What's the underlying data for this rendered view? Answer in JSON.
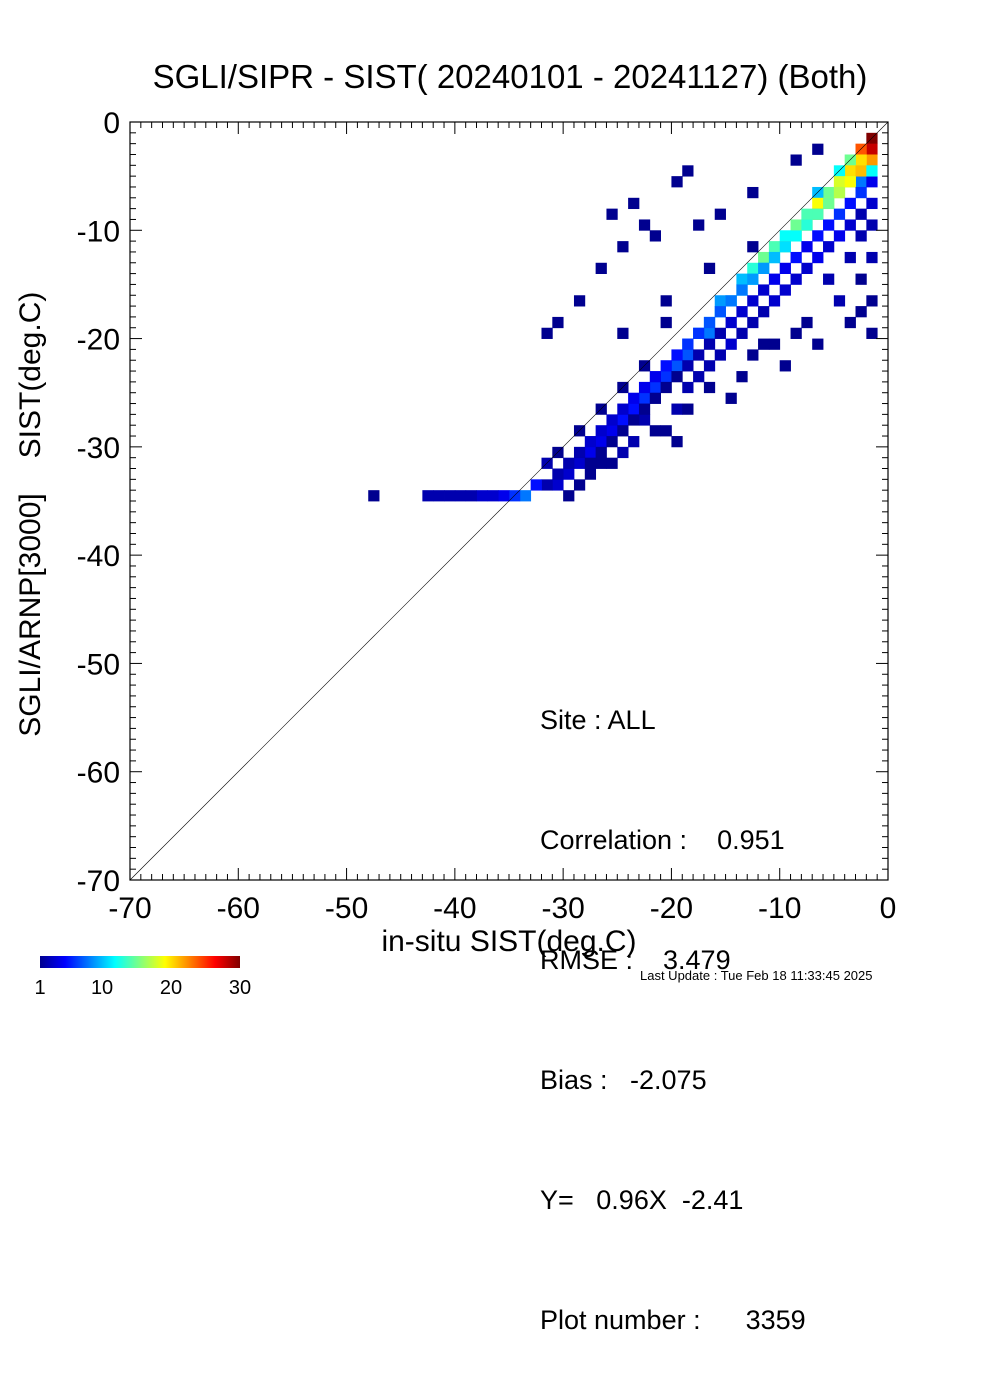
{
  "chart_data": {
    "type": "heatmap",
    "title": "SGLI/SIPR - SIST( 20240101 - 20241127) (Both)",
    "xlabel": "in-situ SIST(deg.C)",
    "ylabel_upper": "SIST(deg.C)",
    "ylabel_lower": "SGLI/ARNP[3000]",
    "xlim": [
      -70,
      0
    ],
    "ylim": [
      -70,
      0
    ],
    "x_ticks": [
      "-70",
      "-60",
      "-50",
      "-40",
      "-30",
      "-20",
      "-10",
      "0"
    ],
    "y_ticks": [
      "-70",
      "-60",
      "-50",
      "-40",
      "-30",
      "-20",
      "-10",
      "0"
    ],
    "identity_line": true,
    "colorbar": {
      "range": [
        1,
        30
      ],
      "tick_labels": [
        "1",
        "10",
        "20",
        "30"
      ],
      "colors": [
        "#00008f",
        "#0000ff",
        "#0080ff",
        "#00ffff",
        "#80ff80",
        "#ffff00",
        "#ff8000",
        "#ff0000",
        "#800000"
      ]
    },
    "cells": [
      [
        -1,
        -1,
        30
      ],
      [
        -1,
        -2,
        28
      ],
      [
        -2,
        -2,
        24
      ],
      [
        -1,
        -3,
        22
      ],
      [
        -2,
        -3,
        20
      ],
      [
        -3,
        -3,
        15
      ],
      [
        -2,
        -4,
        18
      ],
      [
        -3,
        -4,
        20
      ],
      [
        -4,
        -4,
        12
      ],
      [
        -2,
        -5,
        8
      ],
      [
        -3,
        -5,
        14
      ],
      [
        -4,
        -5,
        18
      ],
      [
        -4,
        -6,
        16
      ],
      [
        -5,
        -6,
        15
      ],
      [
        -6,
        -6,
        10
      ],
      [
        -5,
        -7,
        17
      ],
      [
        -6,
        -7,
        19
      ],
      [
        -6,
        -8,
        22
      ],
      [
        -7,
        -8,
        14
      ],
      [
        -7,
        -9,
        20
      ],
      [
        -8,
        -9,
        15
      ],
      [
        -8,
        -10,
        18
      ],
      [
        -9,
        -10,
        12
      ],
      [
        -9,
        -11,
        16
      ],
      [
        -10,
        -11,
        14
      ],
      [
        -10,
        -12,
        12
      ],
      [
        -11,
        -12,
        15
      ],
      [
        -11,
        -13,
        11
      ],
      [
        -12,
        -13,
        13
      ],
      [
        -12,
        -14,
        12
      ],
      [
        -13,
        -14,
        10
      ],
      [
        -13,
        -15,
        11
      ],
      [
        -14,
        -16,
        10
      ],
      [
        -15,
        -16,
        9
      ],
      [
        -15,
        -17,
        11
      ],
      [
        -16,
        -18,
        9
      ],
      [
        -16,
        -19,
        8
      ],
      [
        -17,
        -19,
        9
      ],
      [
        -18,
        -20,
        8
      ],
      [
        -18,
        -21,
        7
      ],
      [
        -19,
        -22,
        7
      ],
      [
        -20,
        -23,
        6
      ],
      [
        -21,
        -24,
        6
      ],
      [
        -22,
        -25,
        6
      ],
      [
        -23,
        -26,
        5
      ],
      [
        -24,
        -27,
        5
      ],
      [
        -25,
        -28,
        4
      ],
      [
        -26,
        -29,
        4
      ],
      [
        -27,
        -30,
        4
      ],
      [
        -28,
        -31,
        3
      ],
      [
        -29,
        -32,
        3
      ],
      [
        -30,
        -33,
        3
      ],
      [
        -31,
        -33,
        2
      ],
      [
        -32,
        -33,
        5
      ],
      [
        -33,
        -34,
        8
      ],
      [
        -34,
        -34,
        6
      ],
      [
        -35,
        -34,
        4
      ],
      [
        -36,
        -34,
        3
      ],
      [
        -37,
        -34,
        3
      ],
      [
        -38,
        -34,
        2
      ],
      [
        -39,
        -34,
        2
      ],
      [
        -40,
        -34,
        2
      ],
      [
        -41,
        -34,
        2
      ],
      [
        -42,
        -34,
        2
      ],
      [
        -47,
        -34,
        1
      ],
      [
        -1,
        -5,
        4
      ],
      [
        -1,
        -7,
        3
      ],
      [
        -2,
        -8,
        2
      ],
      [
        -1,
        -9,
        2
      ],
      [
        -3,
        -9,
        3
      ],
      [
        -2,
        -10,
        2
      ],
      [
        -4,
        -10,
        4
      ],
      [
        -5,
        -11,
        3
      ],
      [
        -1,
        -12,
        2
      ],
      [
        -3,
        -12,
        2
      ],
      [
        -6,
        -12,
        4
      ],
      [
        -7,
        -13,
        3
      ],
      [
        -2,
        -14,
        1
      ],
      [
        -5,
        -14,
        2
      ],
      [
        -8,
        -14,
        3
      ],
      [
        -9,
        -15,
        3
      ],
      [
        -1,
        -16,
        1
      ],
      [
        -4,
        -16,
        2
      ],
      [
        -10,
        -16,
        3
      ],
      [
        -11,
        -17,
        2
      ],
      [
        -3,
        -18,
        1
      ],
      [
        -7,
        -18,
        1
      ],
      [
        -12,
        -18,
        2
      ],
      [
        -13,
        -19,
        2
      ],
      [
        -14,
        -20,
        3
      ],
      [
        -15,
        -21,
        2
      ],
      [
        -6,
        -20,
        1
      ],
      [
        -10,
        -20,
        1
      ],
      [
        -16,
        -22,
        2
      ],
      [
        -17,
        -23,
        2
      ],
      [
        -18,
        -24,
        2
      ],
      [
        -14,
        -25,
        1
      ],
      [
        -19,
        -26,
        2
      ],
      [
        -22,
        -27,
        2
      ],
      [
        -20,
        -28,
        1
      ],
      [
        -23,
        -29,
        2
      ],
      [
        -24,
        -30,
        2
      ],
      [
        -25,
        -31,
        1
      ],
      [
        -27,
        -32,
        1
      ],
      [
        -28,
        -33,
        1
      ],
      [
        -29,
        -34,
        1
      ],
      [
        -12,
        -21,
        1
      ],
      [
        -9,
        -22,
        1
      ],
      [
        -16,
        -24,
        1
      ],
      [
        -21,
        -28,
        1
      ],
      [
        -26,
        -30,
        1
      ],
      [
        -2,
        -17,
        1
      ],
      [
        -1,
        -19,
        1
      ],
      [
        -8,
        -19,
        1
      ],
      [
        -11,
        -20,
        1
      ],
      [
        -13,
        -23,
        1
      ],
      [
        -18,
        -26,
        1
      ],
      [
        -19,
        -29,
        1
      ],
      [
        -6,
        -2,
        1
      ],
      [
        -8,
        -3,
        1
      ],
      [
        -12,
        -6,
        1
      ],
      [
        -15,
        -8,
        1
      ],
      [
        -17,
        -9,
        1
      ],
      [
        -21,
        -10,
        1
      ],
      [
        -24,
        -11,
        1
      ],
      [
        -26,
        -13,
        1
      ],
      [
        -28,
        -16,
        1
      ],
      [
        -30,
        -18,
        1
      ],
      [
        -31,
        -19,
        1
      ],
      [
        -25,
        -8,
        1
      ],
      [
        -23,
        -7,
        1
      ],
      [
        -22,
        -9,
        1
      ],
      [
        -18,
        -4,
        1
      ],
      [
        -19,
        -5,
        1
      ],
      [
        -12,
        -11,
        1
      ],
      [
        -16,
        -13,
        1
      ],
      [
        -20,
        -18,
        1
      ],
      [
        -22,
        -22,
        1
      ],
      [
        -24,
        -24,
        1
      ],
      [
        -26,
        -26,
        1
      ],
      [
        -28,
        -28,
        1
      ],
      [
        -30,
        -30,
        1
      ],
      [
        -31,
        -31,
        2
      ],
      [
        -30,
        -32,
        2
      ],
      [
        -29,
        -31,
        2
      ],
      [
        -28,
        -30,
        2
      ],
      [
        -27,
        -29,
        3
      ],
      [
        -26,
        -28,
        3
      ],
      [
        -25,
        -27,
        3
      ],
      [
        -24,
        -26,
        3
      ],
      [
        -23,
        -25,
        4
      ],
      [
        -22,
        -24,
        4
      ],
      [
        -21,
        -23,
        4
      ],
      [
        -20,
        -22,
        5
      ],
      [
        -19,
        -21,
        5
      ],
      [
        -18,
        -20,
        6
      ],
      [
        -17,
        -19,
        6
      ],
      [
        -16,
        -18,
        7
      ],
      [
        -15,
        -17,
        7
      ],
      [
        -14,
        -16,
        8
      ],
      [
        -13,
        -15,
        8
      ],
      [
        -12,
        -14,
        9
      ],
      [
        -11,
        -13,
        9
      ],
      [
        -10,
        -12,
        10
      ],
      [
        -9,
        -11,
        11
      ],
      [
        -8,
        -10,
        12
      ],
      [
        -7,
        -9,
        13
      ],
      [
        -6,
        -8,
        14
      ],
      [
        -5,
        -7,
        15
      ],
      [
        -4,
        -6,
        17
      ],
      [
        -3,
        -5,
        19
      ],
      [
        -2,
        -4,
        21
      ],
      [
        -1,
        -4,
        12
      ],
      [
        -2,
        -6,
        6
      ],
      [
        -3,
        -7,
        5
      ],
      [
        -4,
        -8,
        6
      ],
      [
        -5,
        -9,
        5
      ],
      [
        -6,
        -10,
        5
      ],
      [
        -7,
        -11,
        4
      ],
      [
        -8,
        -12,
        5
      ],
      [
        -9,
        -13,
        4
      ],
      [
        -10,
        -14,
        4
      ],
      [
        -11,
        -15,
        3
      ],
      [
        -12,
        -16,
        3
      ],
      [
        -13,
        -17,
        3
      ],
      [
        -14,
        -18,
        3
      ],
      [
        -15,
        -19,
        2
      ],
      [
        -16,
        -20,
        2
      ],
      [
        -17,
        -21,
        2
      ],
      [
        -18,
        -22,
        2
      ],
      [
        -19,
        -23,
        1
      ],
      [
        -20,
        -24,
        1
      ],
      [
        -21,
        -25,
        1
      ],
      [
        -22,
        -26,
        1
      ],
      [
        -23,
        -27,
        1
      ],
      [
        -24,
        -28,
        1
      ],
      [
        -25,
        -29,
        1
      ],
      [
        -26,
        -31,
        1
      ],
      [
        -27,
        -31,
        1
      ],
      [
        -20,
        -16,
        1
      ],
      [
        -24,
        -19,
        1
      ]
    ]
  },
  "stats": {
    "site": "Site : ALL",
    "correlation": "Correlation :    0.951",
    "rmse": "RMSE :    3.479",
    "bias": "Bias :   -2.075",
    "regression": "Y=   0.96X  -2.41",
    "plot_number": "Plot number :      3359"
  },
  "footer": {
    "last_update": "Last Update : Tue Feb 18 11:33:45 2025"
  }
}
